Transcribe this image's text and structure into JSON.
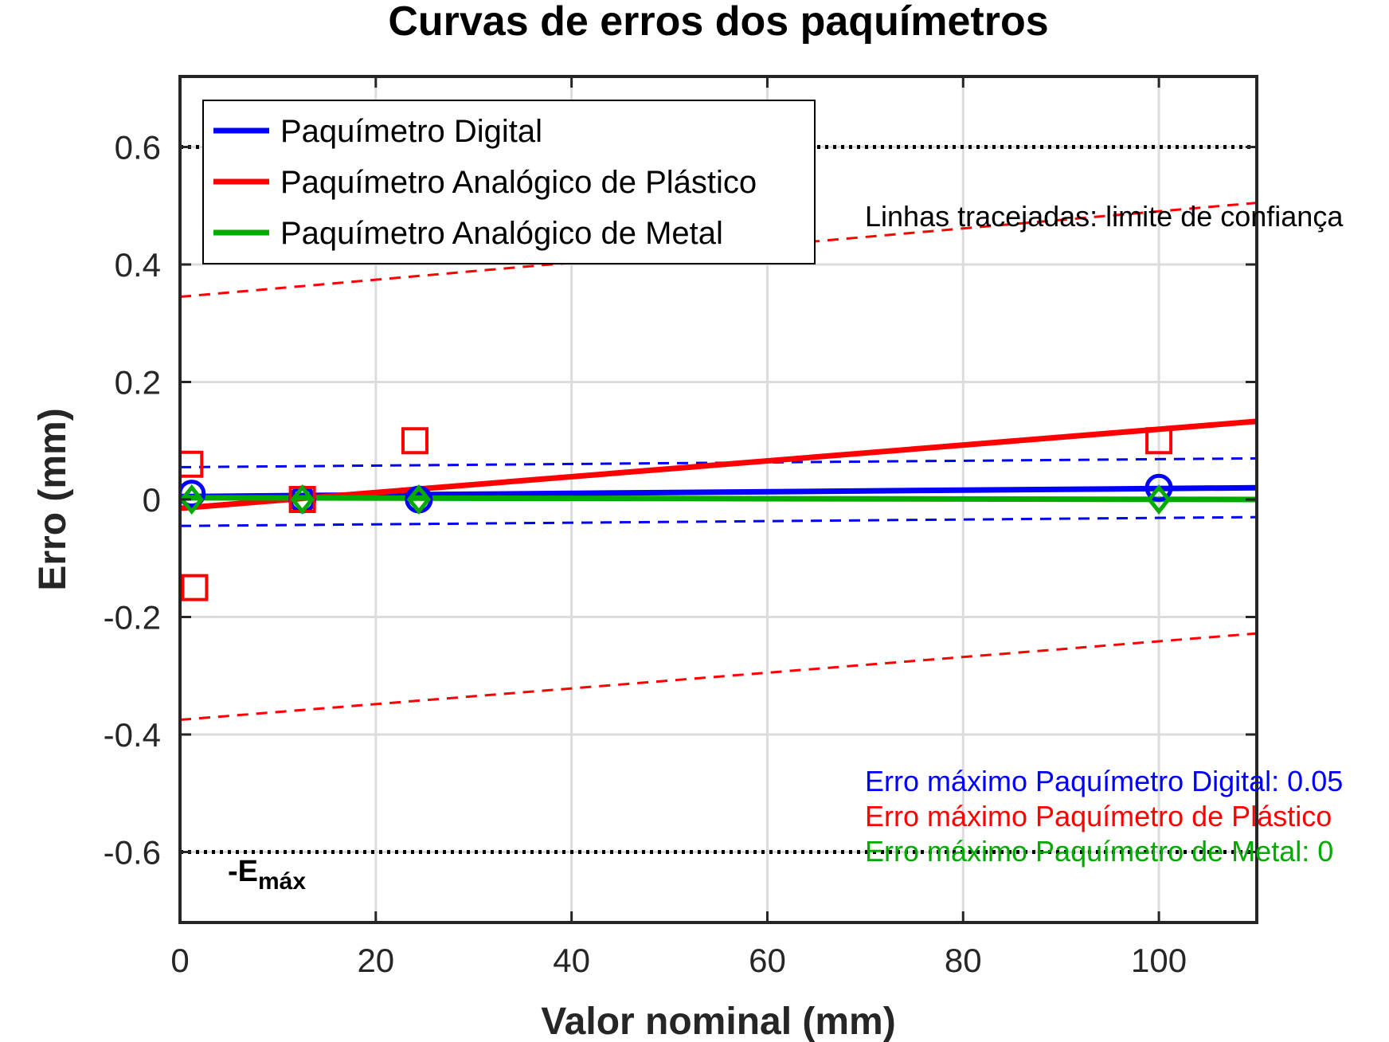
{
  "chart_data": {
    "type": "line",
    "title": "Curvas de erros dos paquímetros",
    "xlabel": "Valor nominal (mm)",
    "ylabel": "Erro (mm)",
    "xlim": [
      0,
      110
    ],
    "ylim": [
      -0.72,
      0.72
    ],
    "xticks": [
      0,
      20,
      40,
      60,
      80,
      100
    ],
    "xtick_labels": [
      "0",
      "20",
      "40",
      "60",
      "80",
      "100"
    ],
    "yticks": [
      -0.6,
      -0.4,
      -0.2,
      0,
      0.2,
      0.4,
      0.6
    ],
    "ytick_labels": [
      "-0.6",
      "-0.4",
      "-0.2",
      "0",
      "0.2",
      "0.4",
      "0.6"
    ],
    "grid": true,
    "legend_position": "top-left",
    "series": [
      {
        "name": "Paquímetro Digital",
        "color": "#0000ff",
        "marker": "circle",
        "points": [
          [
            1.2,
            0.01
          ],
          [
            12.5,
            0.0
          ],
          [
            24.4,
            0.0
          ],
          [
            100,
            0.02
          ]
        ],
        "fit": [
          [
            0,
            0.005
          ],
          [
            110,
            0.02
          ]
        ],
        "confidence_upper": [
          [
            0,
            0.055
          ],
          [
            110,
            0.07
          ]
        ],
        "confidence_lower": [
          [
            0,
            -0.045
          ],
          [
            110,
            -0.03
          ]
        ]
      },
      {
        "name": "Paquímetro Analógico de Plástico",
        "color": "#ff0000",
        "marker": "square",
        "points": [
          [
            1.0,
            0.06
          ],
          [
            1.5,
            -0.15
          ],
          [
            12.5,
            0.0
          ],
          [
            24.0,
            0.1
          ],
          [
            100,
            0.1
          ]
        ],
        "fit": [
          [
            0,
            -0.015
          ],
          [
            110,
            0.133
          ]
        ],
        "confidence_upper": [
          [
            0,
            0.345
          ],
          [
            110,
            0.505
          ]
        ],
        "confidence_lower": [
          [
            0,
            -0.375
          ],
          [
            110,
            -0.228
          ]
        ]
      },
      {
        "name": "Paquímetro Analógico de Metal",
        "color": "#00aa00",
        "marker": "diamond",
        "points": [
          [
            1.2,
            0.0
          ],
          [
            12.5,
            0.0
          ],
          [
            24.4,
            0.0
          ],
          [
            100,
            0.0
          ]
        ],
        "fit": [
          [
            0,
            0.003
          ],
          [
            110,
            0.0
          ]
        ]
      }
    ],
    "reference_lines": [
      {
        "y": 0.6,
        "color": "#000000",
        "style": "dotted"
      },
      {
        "y": -0.6,
        "color": "#000000",
        "style": "dotted"
      }
    ],
    "annotations": {
      "emax_base": "-E",
      "emax_sub": "máx",
      "dashed_note": "Linhas tracejadas: limite de confiança",
      "max_error_digital": "Erro máximo Paquímetro Digital: 0.05",
      "max_error_plastic": "Erro máximo Paquímetro de Plástico",
      "max_error_metal": "Erro máximo Paquímetro de Metal: 0"
    },
    "annotation_colors": {
      "digital": "#0000ff",
      "plastic": "#ff0000",
      "metal": "#00aa00"
    }
  }
}
